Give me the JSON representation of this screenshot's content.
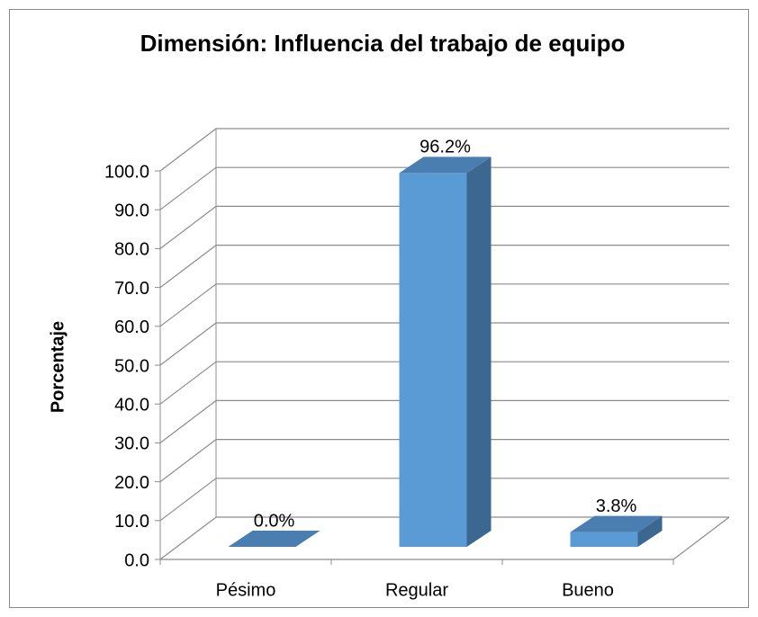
{
  "chart_data": {
    "type": "bar3d",
    "title": "Dimensión: Influencia del trabajo de equipo",
    "y_label": "Porcentaje",
    "categories": [
      "Pésimo",
      "Regular",
      "Bueno"
    ],
    "values": [
      0,
      96.2,
      3.8
    ],
    "value_labels": [
      "0.0%",
      "96.2%",
      "3.8%"
    ],
    "color": "#5b9bd5",
    "ylim": [
      0,
      100
    ],
    "yticks": [
      {
        "value": 0,
        "label": "0.0"
      },
      {
        "value": 10,
        "label": "10.0"
      },
      {
        "value": 20,
        "label": "20.0"
      },
      {
        "value": 30,
        "label": "30.0"
      },
      {
        "value": 40,
        "label": "40.0"
      },
      {
        "value": 50,
        "label": "50.0"
      },
      {
        "value": 60,
        "label": "60.0"
      },
      {
        "value": 70,
        "label": "70.0"
      },
      {
        "value": 80,
        "label": "80.0"
      },
      {
        "value": 90,
        "label": "90.0"
      },
      {
        "value": 100,
        "label": "100.0"
      }
    ],
    "grid": true
  }
}
